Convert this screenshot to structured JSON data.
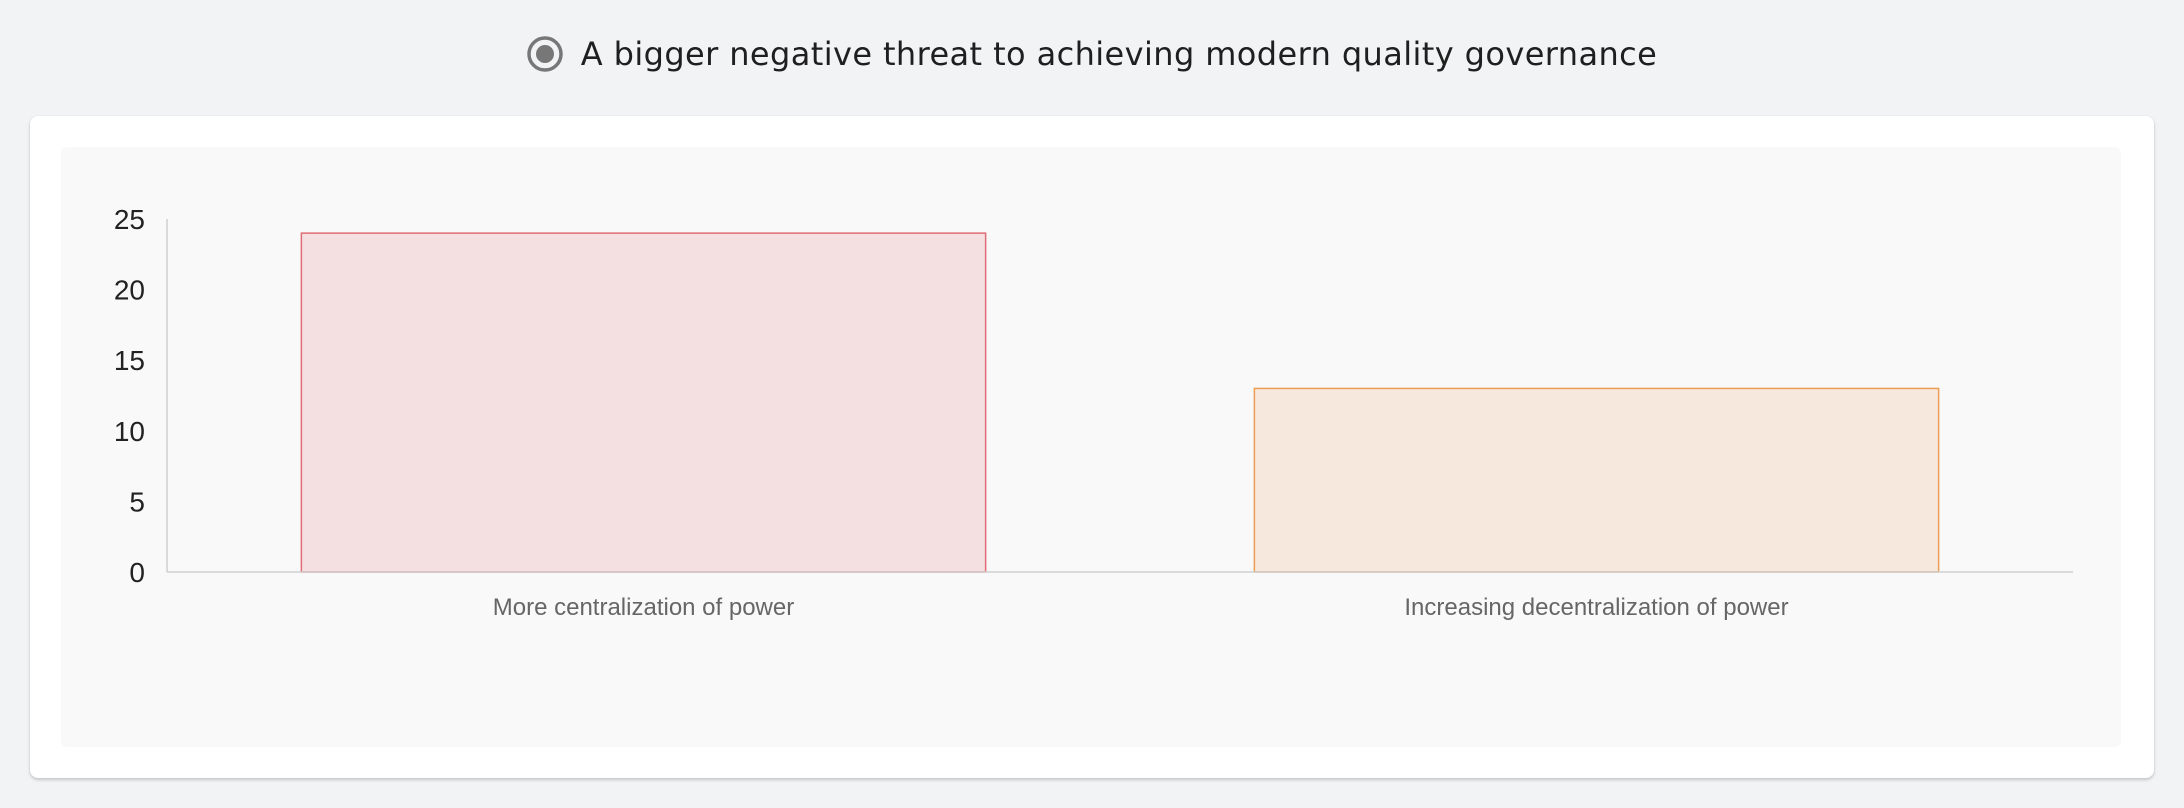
{
  "header": {
    "title": "A bigger negative threat to achieving modern quality governance",
    "radio_selected": true,
    "radio_icon": "radio-selected-icon"
  },
  "chart_data": {
    "type": "bar",
    "title": "A bigger negative threat to achieving modern quality governance",
    "categories": [
      "More centralization of power",
      "Increasing decentralization of power"
    ],
    "values": [
      24,
      13
    ],
    "ylim": [
      0,
      25
    ],
    "yticks": [
      0,
      5,
      10,
      15,
      20,
      25
    ],
    "grid": false,
    "legend": "none",
    "bar_fill_colors": [
      "#f5e0e1",
      "#f6e8dc"
    ],
    "bar_stroke_colors": [
      "#e06d73",
      "#ec9e53"
    ],
    "axis_color": "#d0d0d0"
  }
}
